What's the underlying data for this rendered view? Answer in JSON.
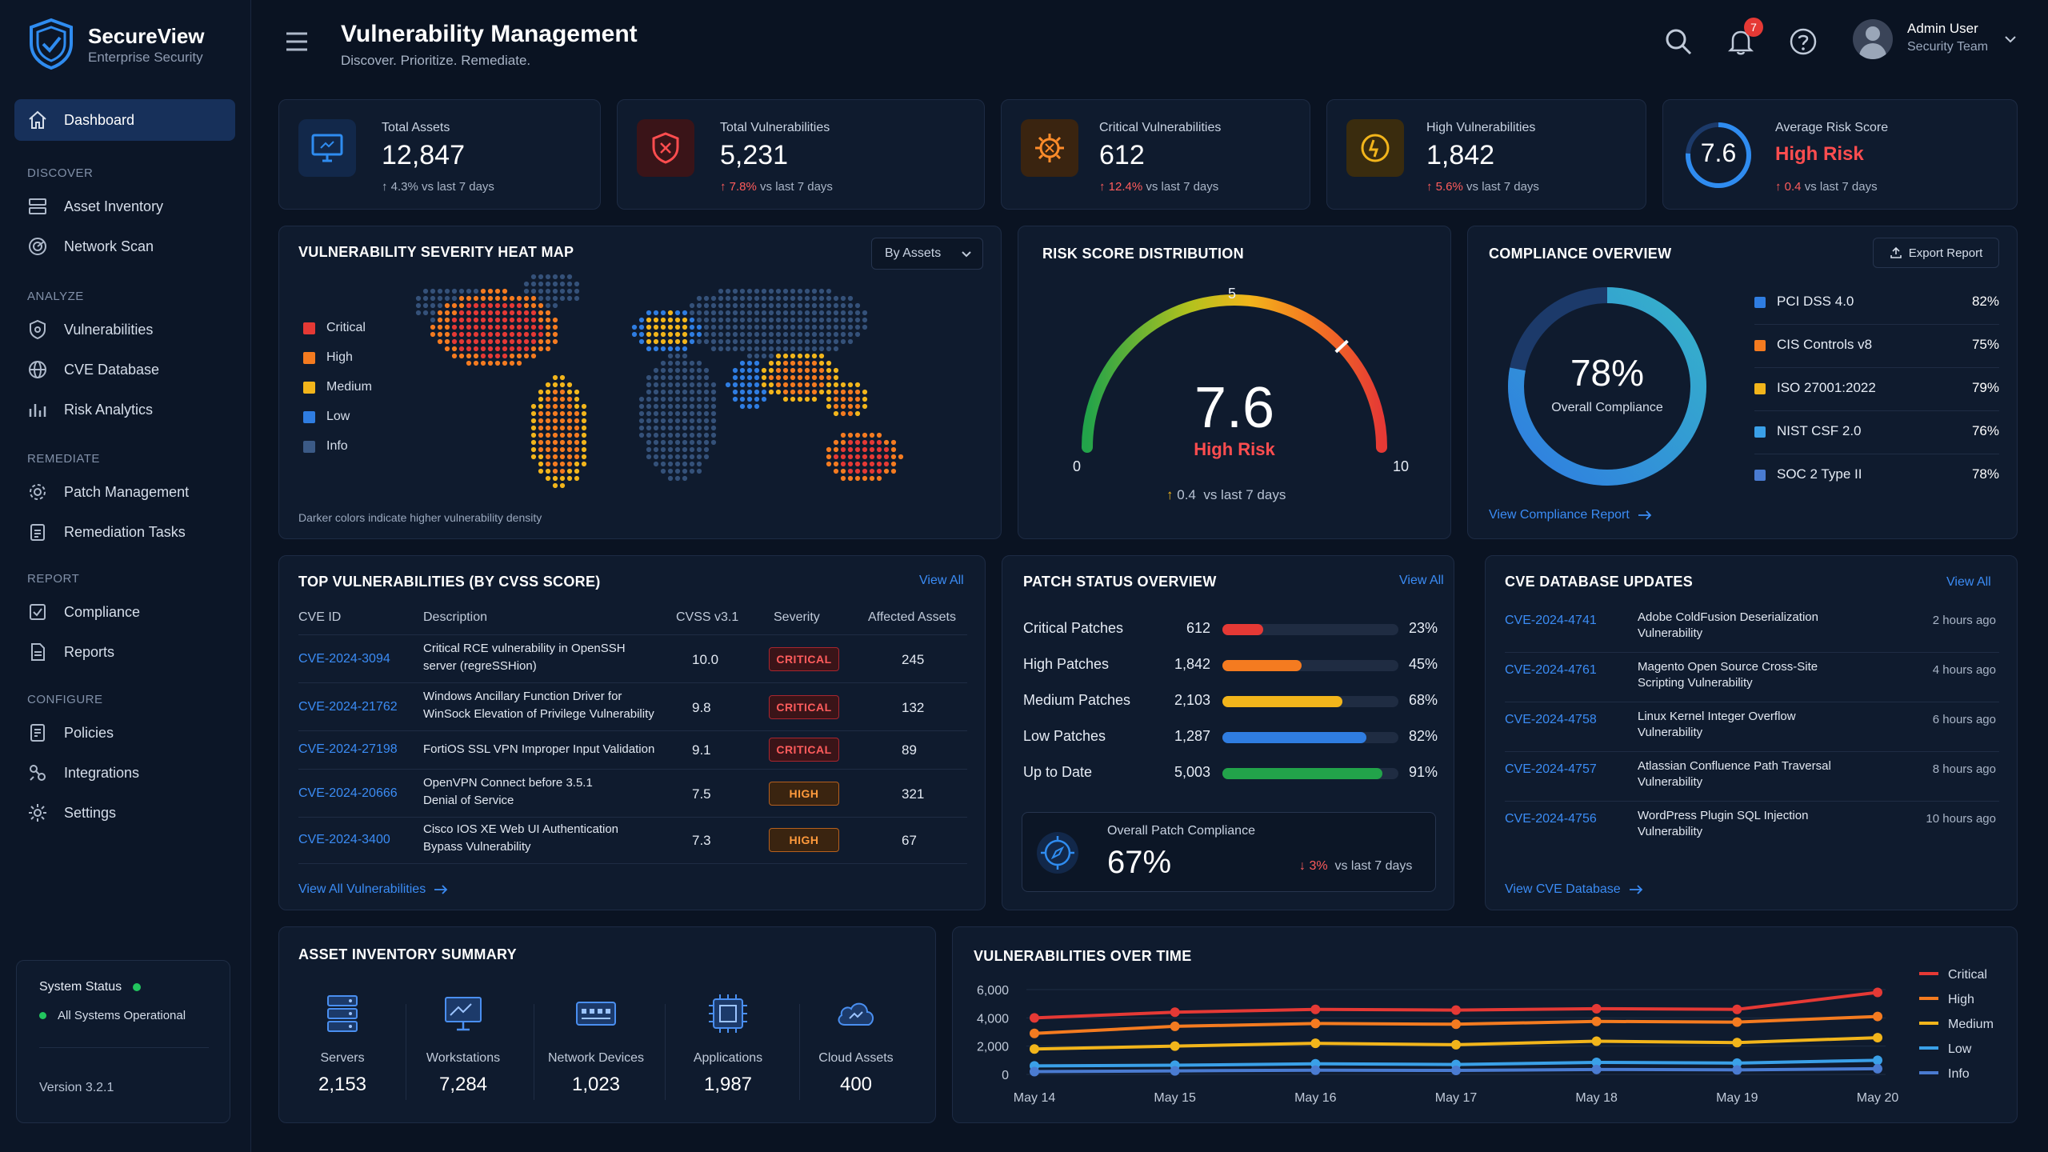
{
  "brand": {
    "name": "SecureView",
    "subtitle": "Enterprise Security"
  },
  "header": {
    "title": "Vulnerability Management",
    "subtitle": "Discover. Prioritize. Remediate.",
    "notification_count": "7",
    "user_name": "Admin User",
    "user_role": "Security Team"
  },
  "sidebar": {
    "dashboard": "Dashboard",
    "sections": {
      "discover": "DISCOVER",
      "analyze": "ANALYZE",
      "remediate": "REMEDIATE",
      "report": "REPORT",
      "configure": "CONFIGURE"
    },
    "items": {
      "asset_inventory": "Asset Inventory",
      "network_scan": "Network Scan",
      "vulnerabilities": "Vulnerabilities",
      "cve_database": "CVE Database",
      "risk_analytics": "Risk Analytics",
      "patch_management": "Patch Management",
      "remediation_tasks": "Remediation Tasks",
      "compliance": "Compliance",
      "reports": "Reports",
      "policies": "Policies",
      "integrations": "Integrations",
      "settings": "Settings"
    },
    "status": {
      "title": "System Status",
      "text": "All Systems Operational",
      "version": "Version 3.2.1",
      "color": "#22c55e"
    }
  },
  "stats": [
    {
      "label": "Total Assets",
      "value": "12,847",
      "delta": "4.3%",
      "delta_suffix": "vs last 7 days"
    },
    {
      "label": "Total Vulnerabilities",
      "value": "5,231",
      "delta": "7.8%",
      "delta_suffix": "vs last 7 days"
    },
    {
      "label": "Critical Vulnerabilities",
      "value": "612",
      "delta": "12.4%",
      "delta_suffix": "vs last 7 days"
    },
    {
      "label": "High Vulnerabilities",
      "value": "1,842",
      "delta": "5.6%",
      "delta_suffix": "vs last 7 days"
    },
    {
      "label": "Average Risk Score",
      "value": "7.6",
      "level": "High Risk",
      "delta": "0.4",
      "delta_suffix": "vs last 7 days"
    }
  ],
  "heatmap": {
    "title": "VULNERABILITY SEVERITY HEAT MAP",
    "dropdown": "By Assets",
    "legend": [
      "Critical",
      "High",
      "Medium",
      "Low",
      "Info"
    ],
    "legend_colors": [
      "#e53935",
      "#f47b20",
      "#f2b51b",
      "#2f7de1",
      "#3b5a86"
    ],
    "footnote": "Darker colors indicate higher vulnerability density"
  },
  "risk": {
    "title": "RISK SCORE DISTRIBUTION",
    "score": "7.6",
    "score_value": 7.6,
    "level": "High Risk",
    "min": "0",
    "mid": "5",
    "max": "10",
    "delta": "0.4",
    "delta_suffix": "vs last 7 days"
  },
  "compliance": {
    "title": "COMPLIANCE OVERVIEW",
    "export": "Export Report",
    "overall": "78%",
    "overall_value": 78,
    "overall_label": "Overall Compliance",
    "frameworks": [
      {
        "name": "PCI DSS 4.0",
        "pct": "82%",
        "color": "#2f7de1"
      },
      {
        "name": "CIS Controls v8",
        "pct": "75%",
        "color": "#f47b20"
      },
      {
        "name": "ISO 27001:2022",
        "pct": "79%",
        "color": "#f2b51b"
      },
      {
        "name": "NIST CSF 2.0",
        "pct": "76%",
        "color": "#3aa0e8"
      },
      {
        "name": "SOC 2 Type II",
        "pct": "78%",
        "color": "#4a7bd1"
      }
    ],
    "link": "View Compliance Report"
  },
  "top_vulns": {
    "title": "TOP VULNERABILITIES (BY CVSS SCORE)",
    "view_all": "View All",
    "columns": [
      "CVE ID",
      "Description",
      "CVSS v3.1",
      "Severity",
      "Affected Assets"
    ],
    "rows": [
      {
        "id": "CVE-2024-3094",
        "desc1": "Critical RCE vulnerability in OpenSSH",
        "desc2": "server (regreSSHion)",
        "cvss": "10.0",
        "severity": "CRITICAL",
        "assets": "245"
      },
      {
        "id": "CVE-2024-21762",
        "desc1": "Windows Ancillary Function Driver for",
        "desc2": "WinSock Elevation of Privilege Vulnerability",
        "cvss": "9.8",
        "severity": "CRITICAL",
        "assets": "132"
      },
      {
        "id": "CVE-2024-27198",
        "desc1": "FortiOS SSL VPN Improper Input Validation",
        "desc2": "",
        "cvss": "9.1",
        "severity": "CRITICAL",
        "assets": "89"
      },
      {
        "id": "CVE-2024-20666",
        "desc1": "OpenVPN Connect before 3.5.1",
        "desc2": "Denial of Service",
        "cvss": "7.5",
        "severity": "HIGH",
        "assets": "321"
      },
      {
        "id": "CVE-2024-3400",
        "desc1": "Cisco IOS XE Web UI Authentication",
        "desc2": "Bypass Vulnerability",
        "cvss": "7.3",
        "severity": "HIGH",
        "assets": "67"
      }
    ],
    "link": "View All Vulnerabilities"
  },
  "patch": {
    "title": "PATCH STATUS OVERVIEW",
    "view_all": "View All",
    "rows": [
      {
        "label": "Critical Patches",
        "count": "612",
        "pct": "23%",
        "value": 23,
        "color": "#e53935"
      },
      {
        "label": "High Patches",
        "count": "1,842",
        "pct": "45%",
        "value": 45,
        "color": "#f47b20"
      },
      {
        "label": "Medium Patches",
        "count": "2,103",
        "pct": "68%",
        "value": 68,
        "color": "#f2b51b"
      },
      {
        "label": "Low Patches",
        "count": "1,287",
        "pct": "82%",
        "value": 82,
        "color": "#2f7de1"
      },
      {
        "label": "Up to Date",
        "count": "5,003",
        "pct": "91%",
        "value": 91,
        "color": "#22a34a"
      }
    ],
    "overall_label": "Overall Patch Compliance",
    "overall": "67%",
    "delta": "3%",
    "delta_suffix": "vs last 7 days"
  },
  "cve_updates": {
    "title": "CVE DATABASE UPDATES",
    "view_all": "View All",
    "rows": [
      {
        "id": "CVE-2024-4741",
        "t1": "Adobe ColdFusion Deserialization",
        "t2": "Vulnerability",
        "time": "2 hours ago"
      },
      {
        "id": "CVE-2024-4761",
        "t1": "Magento Open Source Cross-Site",
        "t2": "Scripting Vulnerability",
        "time": "4 hours ago"
      },
      {
        "id": "CVE-2024-4758",
        "t1": "Linux Kernel Integer Overflow",
        "t2": "Vulnerability",
        "time": "6 hours ago"
      },
      {
        "id": "CVE-2024-4757",
        "t1": "Atlassian Confluence Path Traversal",
        "t2": "Vulnerability",
        "time": "8 hours ago"
      },
      {
        "id": "CVE-2024-4756",
        "t1": "WordPress Plugin SQL Injection",
        "t2": "Vulnerability",
        "time": "10 hours ago"
      }
    ],
    "link": "View CVE Database"
  },
  "assets": {
    "title": "ASSET INVENTORY SUMMARY",
    "items": [
      {
        "label": "Servers",
        "value": "2,153"
      },
      {
        "label": "Workstations",
        "value": "7,284"
      },
      {
        "label": "Network Devices",
        "value": "1,023"
      },
      {
        "label": "Applications",
        "value": "1,987"
      },
      {
        "label": "Cloud Assets",
        "value": "400"
      }
    ]
  },
  "chart_data": {
    "type": "line",
    "title": "VULNERABILITIES OVER TIME",
    "x": [
      "May 14",
      "May 15",
      "May 16",
      "May 17",
      "May 18",
      "May 19",
      "May 20"
    ],
    "y_ticks": [
      "6,000",
      "4,000",
      "2,000",
      "0"
    ],
    "ylim": [
      0,
      6000
    ],
    "grid": true,
    "legend_position": "right",
    "series": [
      {
        "name": "Critical",
        "color": "#e53935",
        "values": [
          4000,
          4400,
          4600,
          4550,
          4650,
          4600,
          5800
        ]
      },
      {
        "name": "High",
        "color": "#f47b20",
        "values": [
          2900,
          3400,
          3600,
          3550,
          3750,
          3700,
          4100
        ]
      },
      {
        "name": "Medium",
        "color": "#f2b51b",
        "values": [
          1800,
          2000,
          2200,
          2100,
          2350,
          2250,
          2600
        ]
      },
      {
        "name": "Low",
        "color": "#3aa0e8",
        "values": [
          600,
          650,
          750,
          700,
          850,
          800,
          1000
        ]
      },
      {
        "name": "Info",
        "color": "#4a7bd1",
        "values": [
          200,
          250,
          300,
          280,
          350,
          320,
          400
        ]
      }
    ]
  }
}
